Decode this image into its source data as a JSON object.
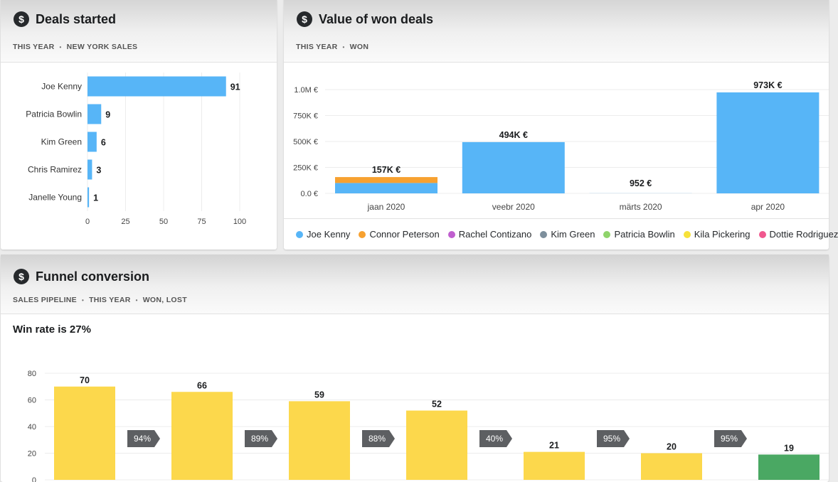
{
  "colors": {
    "bar_blue": "#57b5f7",
    "bar_orange": "#f7a130",
    "funnel_yellow": "#fcd84c",
    "funnel_green": "#4aa863",
    "arrow_gray": "#5d5f62"
  },
  "deals_started": {
    "icon": "dollar-icon",
    "title": "Deals started",
    "filters": [
      "THIS YEAR",
      "NEW YORK SALES"
    ],
    "separator": "•",
    "chart_data": {
      "type": "bar",
      "orientation": "horizontal",
      "categories": [
        "Joe Kenny",
        "Patricia Bowlin",
        "Kim Green",
        "Chris Ramirez",
        "Janelle Young"
      ],
      "values": [
        91,
        9,
        6,
        3,
        1
      ],
      "xlim": [
        0,
        100
      ],
      "xticks": [
        "0",
        "25",
        "50",
        "75",
        "100"
      ],
      "grid": true
    }
  },
  "won_deals": {
    "icon": "dollar-icon",
    "title": "Value of won deals",
    "filters": [
      "THIS YEAR",
      "WON"
    ],
    "separator": "•",
    "chart_data": {
      "type": "bar",
      "stacked": true,
      "categories": [
        "jaan 2020",
        "veebr 2020",
        "märts 2020",
        "apr 2020"
      ],
      "series": [
        {
          "name": "Joe Kenny",
          "color": "#57b5f7",
          "values": [
            100000,
            494000,
            952,
            973000
          ]
        },
        {
          "name": "Connor Peterson",
          "color": "#f7a130",
          "values": [
            57000,
            0,
            0,
            0
          ]
        }
      ],
      "totals": [
        "157K €",
        "494K €",
        "952 €",
        "973K €"
      ],
      "ylim": [
        0,
        1000000
      ],
      "yticks": [
        "0.0 €",
        "250K €",
        "500K €",
        "750K €",
        "1.0M €"
      ],
      "grid": true
    },
    "legend": [
      {
        "name": "Joe Kenny",
        "color": "#57b5f7"
      },
      {
        "name": "Connor Peterson",
        "color": "#f7a130"
      },
      {
        "name": "Rachel Contizano",
        "color": "#c05fcf"
      },
      {
        "name": "Kim Green",
        "color": "#7d8f9c"
      },
      {
        "name": "Patricia Bowlin",
        "color": "#8fd46b"
      },
      {
        "name": "Kila Pickering",
        "color": "#f7e23a"
      },
      {
        "name": "Dottie Rodriguez",
        "color": "#f0588e"
      }
    ]
  },
  "funnel": {
    "icon": "dollar-icon",
    "title": "Funnel conversion",
    "filters": [
      "SALES PIPELINE",
      "THIS YEAR",
      "WON, LOST"
    ],
    "separator": "•",
    "win_rate": "Win rate is 27%",
    "chart_data": {
      "type": "bar",
      "values": [
        70,
        66,
        59,
        52,
        21,
        20,
        19
      ],
      "highlight_last": true,
      "conversions": [
        "94%",
        "89%",
        "88%",
        "40%",
        "95%",
        "95%"
      ],
      "ylim": [
        0,
        80
      ],
      "yticks": [
        "0",
        "20",
        "40",
        "60",
        "80"
      ],
      "grid": true
    }
  }
}
